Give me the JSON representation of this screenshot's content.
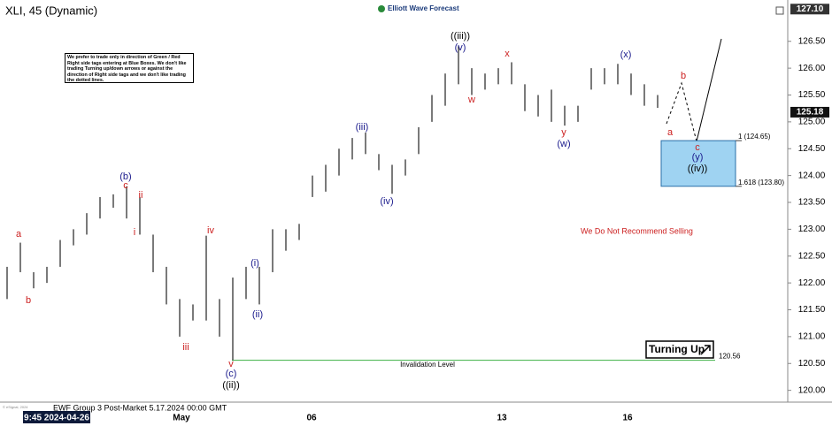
{
  "chart_data": {
    "type": "ohlc",
    "title": "XLI, 45 (Dynamic)",
    "brand": "Elliott Wave Forecast",
    "note": "We prefer to trade only in direction of Green / Red Right side tags entering at Blue Boxes. We don't like trading Turning up/down arrows or against the direction of Right side tags and we don't like trading the dotted lines.",
    "highs": [
      122.3,
      122.75,
      122.2,
      122.3,
      122.8,
      123.0,
      123.3,
      123.6,
      123.65,
      123.8,
      123.6,
      122.9,
      122.3,
      121.7,
      121.6,
      122.88,
      121.7,
      122.1,
      122.3,
      122.3,
      123.0,
      123.0,
      123.1,
      124.0,
      124.2,
      124.5,
      124.7,
      124.8,
      124.4,
      124.2,
      124.3,
      124.9,
      125.5,
      125.9,
      126.41,
      126.0,
      125.9,
      126.0,
      126.11,
      125.7,
      125.5,
      125.6,
      125.3,
      125.3,
      126.0,
      126.0,
      126.08,
      125.9,
      125.7,
      125.5
    ],
    "lows": [
      121.7,
      122.2,
      121.9,
      122.0,
      122.3,
      122.7,
      122.9,
      123.2,
      123.4,
      123.2,
      122.9,
      122.2,
      121.6,
      121.0,
      121.3,
      121.3,
      121.0,
      120.56,
      121.7,
      121.6,
      122.2,
      122.6,
      122.8,
      123.6,
      123.7,
      124.0,
      124.3,
      124.4,
      124.1,
      123.66,
      124.0,
      124.4,
      125.0,
      125.3,
      125.7,
      125.5,
      125.6,
      125.7,
      125.7,
      125.2,
      125.1,
      125.0,
      124.93,
      125.0,
      125.6,
      125.7,
      125.7,
      125.5,
      125.3,
      125.26
    ],
    "color": "#222222",
    "ylim": [
      119.78,
      127.22
    ],
    "yticks": [
      {
        "value": 120,
        "label": "120.00"
      },
      {
        "value": 120.5,
        "label": "120.50"
      },
      {
        "value": 121,
        "label": "121.00"
      },
      {
        "value": 121.5,
        "label": "121.50"
      },
      {
        "value": 122,
        "label": "122.00"
      },
      {
        "value": 122.5,
        "label": "122.50"
      },
      {
        "value": 123,
        "label": "123.00"
      },
      {
        "value": 123.5,
        "label": "123.50"
      },
      {
        "value": 124,
        "label": "124.00"
      },
      {
        "value": 124.5,
        "label": "124.50"
      },
      {
        "value": 125,
        "label": "125.00"
      },
      {
        "value": 125.5,
        "label": "125.50"
      },
      {
        "value": 126,
        "label": "126.00"
      },
      {
        "value": 126.5,
        "label": "126.50"
      }
    ],
    "top_price": {
      "value": 127.1,
      "label": "127.10"
    },
    "last_price": {
      "value": 125.18,
      "label": "125.18"
    },
    "x_labels": [
      "9:45 2024-04-26",
      "May",
      "06",
      "13",
      "16"
    ],
    "annotations": [
      "a",
      "b",
      "(b)",
      "c",
      "ii",
      "i",
      "iii",
      "iv",
      "v",
      "(c)",
      "((ii))",
      "(i)",
      "(ii)",
      "(iii)",
      "(iv)",
      "((iii))",
      "(v)",
      "w",
      "x",
      "y",
      "(w)",
      "(x)",
      "a",
      "b",
      "c",
      "(y)",
      "((iv))"
    ],
    "box": {
      "top": {
        "value": 124.65,
        "label": "1 (124.65)"
      },
      "bottom": {
        "value": 123.8,
        "label": "1.618 (123.80)"
      }
    },
    "invalidation": 120.56,
    "invalidation_label": "Invalidation Level",
    "sell_note": "We Do Not Recommend Selling",
    "signal": "Turning Up",
    "footer": "EWF Group 3 Post-Market 5.17.2024 00:00 GMT",
    "copyright": "© eSignal, 2024"
  }
}
